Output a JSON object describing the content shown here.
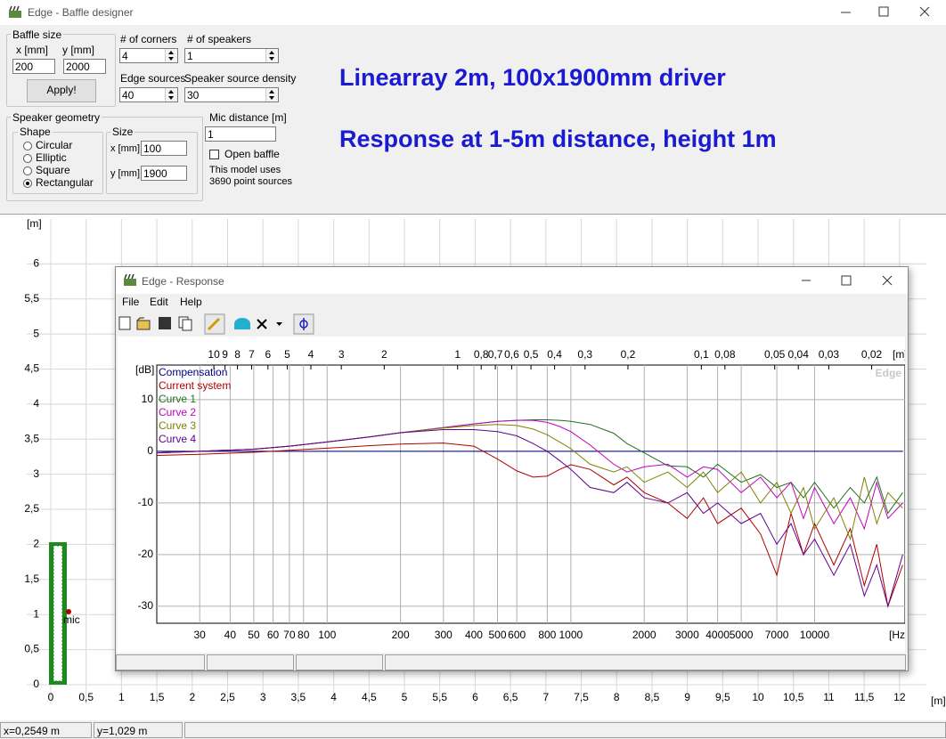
{
  "window": {
    "title": "Edge - Baffle designer"
  },
  "baffle_size": {
    "legend": "Baffle size",
    "x_label": "x [mm]",
    "y_label": "y [mm]",
    "x": "200",
    "y": "2000",
    "apply": "Apply!"
  },
  "corners": {
    "label": "# of corners",
    "value": "4"
  },
  "speakers": {
    "label": "# of speakers",
    "value": "1"
  },
  "edge_sources": {
    "label": "Edge sources",
    "value": "40"
  },
  "source_density": {
    "label": "Speaker source density",
    "value": "30"
  },
  "geometry": {
    "legend": "Speaker geometry",
    "shape_legend": "Shape",
    "shapes": [
      "Circular",
      "Elliptic",
      "Square",
      "Rectangular"
    ],
    "selected": 3,
    "size_legend": "Size",
    "x_label": "x [mm]",
    "x": "100",
    "y_label": "y [mm]",
    "y": "1900"
  },
  "mic": {
    "label": "Mic distance [m]",
    "value": "1",
    "open_baffle": "Open baffle",
    "info": [
      "This model uses",
      "3690 point sources"
    ]
  },
  "notes": [
    "Linearray 2m,  100x1900mm  driver",
    "Response at 1-5m distance, height 1m"
  ],
  "layout_plot": {
    "x_unit": "[m]",
    "y_unit": "[m]",
    "mic_label": "mic",
    "xlim": [
      -0.34,
      12.38
    ],
    "ylim": [
      -0.28,
      6.64
    ],
    "xticks": [
      0,
      {
        "value": 0.5,
        "label": "0,5"
      },
      1,
      {
        "value": 1.5,
        "label": "1,5"
      },
      2,
      {
        "value": 2.5,
        "label": "2,5"
      },
      3,
      {
        "value": 3.5,
        "label": "3,5"
      },
      4,
      {
        "value": 4.5,
        "label": "4,5"
      },
      5,
      {
        "value": 5.5,
        "label": "5,5"
      },
      6,
      {
        "value": 6.5,
        "label": "6,5"
      },
      7,
      {
        "value": 7.5,
        "label": "7,5"
      },
      8,
      {
        "value": 8.5,
        "label": "8,5"
      },
      9,
      {
        "value": 9.5,
        "label": "9,5"
      },
      10,
      {
        "value": 10.5,
        "label": "10,5"
      },
      11,
      {
        "value": 11.5,
        "label": "11,5"
      },
      12
    ],
    "yticks": [
      0,
      {
        "value": 0.5,
        "label": "0,5"
      },
      1,
      {
        "value": 1.5,
        "label": "1,5"
      },
      2,
      {
        "value": 2.5,
        "label": "2,5"
      },
      3,
      {
        "value": 3.5,
        "label": "3,5"
      },
      4,
      {
        "value": 4.5,
        "label": "4,5"
      },
      5,
      {
        "value": 5.5,
        "label": "5,5"
      },
      6
    ]
  },
  "status": [
    "x=0,2549 m",
    "y=1,029 m"
  ],
  "response": {
    "title": "Edge - Response",
    "menu": [
      "File",
      "Edit",
      "Help"
    ],
    "chart": {
      "type": "line",
      "watermark": "Edge",
      "ylabel": "[dB]",
      "x_unit": "[Hz]",
      "top_unit": "[m]",
      "xlog": true,
      "grid": true,
      "xlim": [
        20,
        23500
      ],
      "ylim": [
        -33.3,
        16.7
      ],
      "yticks": [
        -30,
        -20,
        -10,
        0,
        10
      ],
      "xticks": [
        30,
        40,
        50,
        60,
        70,
        80,
        100,
        200,
        300,
        400,
        500,
        600,
        800,
        1000,
        2000,
        3000,
        4000,
        5000,
        7000,
        10000
      ],
      "top_ticks": [
        10,
        9,
        8,
        7,
        6,
        5,
        4,
        3,
        2,
        1,
        {
          "value": 0.8,
          "label": "0,8"
        },
        {
          "value": 0.7,
          "label": "0,7"
        },
        {
          "value": 0.6,
          "label": "0,6"
        },
        {
          "value": 0.5,
          "label": "0,5"
        },
        {
          "value": 0.4,
          "label": "0,4"
        },
        {
          "value": 0.3,
          "label": "0,3"
        },
        {
          "value": 0.2,
          "label": "0,2"
        },
        {
          "value": 0.1,
          "label": "0,1"
        },
        {
          "value": 0.08,
          "label": "0,08"
        },
        {
          "value": 0.05,
          "label": "0,05"
        },
        {
          "value": 0.04,
          "label": "0,04"
        },
        {
          "value": 0.03,
          "label": "0,03"
        },
        {
          "value": 0.02,
          "label": "0,02"
        }
      ],
      "x": [
        20,
        30,
        50,
        70,
        100,
        150,
        200,
        300,
        400,
        500,
        600,
        700,
        800,
        900,
        1000,
        1200,
        1500,
        1700,
        2000,
        2500,
        3000,
        3500,
        4000,
        5000,
        6000,
        7000,
        8000,
        9000,
        10000,
        12000,
        14000,
        16000,
        18000,
        20000,
        23000
      ],
      "series": [
        {
          "name": "Compensation",
          "color": "#000080",
          "values": [
            0,
            0,
            0,
            0,
            0,
            0,
            0,
            0,
            0,
            0,
            0,
            0,
            0,
            0,
            0,
            0,
            0,
            0,
            0,
            0,
            0,
            0,
            0,
            0,
            0,
            0,
            0,
            0,
            0,
            0,
            0,
            0,
            0,
            0,
            0
          ]
        },
        {
          "name": "Current system",
          "color": "#b00000",
          "values": [
            -0.8,
            -0.6,
            -0.2,
            0.2,
            0.6,
            1.1,
            1.4,
            1.6,
            1.0,
            -1.5,
            -3.8,
            -5.0,
            -4.8,
            -3.5,
            -2.6,
            -3.5,
            -6.5,
            -5.0,
            -8.0,
            -10,
            -13,
            -9,
            -14,
            -11,
            -16,
            -24,
            -12,
            -20,
            -14,
            -22,
            -15,
            -26,
            -18,
            -30,
            -22
          ]
        },
        {
          "name": "Curve 1",
          "color": "#207020",
          "values": [
            -0.3,
            0,
            0.4,
            1,
            1.8,
            2.8,
            3.6,
            4.6,
            5.3,
            5.8,
            6,
            6.1,
            6.1,
            6,
            5.8,
            5.2,
            3.5,
            1.5,
            -0.3,
            -2.8,
            -3,
            -5,
            -2.5,
            -6,
            -4.5,
            -7,
            -6,
            -9,
            -6,
            -11,
            -7,
            -10,
            -5,
            -12,
            -8
          ]
        },
        {
          "name": "Curve 2",
          "color": "#c000c0",
          "values": [
            -0.3,
            0,
            0.4,
            1,
            1.8,
            2.8,
            3.6,
            4.6,
            5.3,
            5.8,
            6,
            6,
            5.6,
            4.8,
            3.8,
            1.2,
            -2.5,
            -4,
            -3,
            -2.5,
            -5,
            -3,
            -3.5,
            -8,
            -5,
            -9,
            -6,
            -13,
            -7,
            -14,
            -9,
            -15,
            -6,
            -13,
            -10
          ]
        },
        {
          "name": "Curve 3",
          "color": "#808000",
          "values": [
            -0.3,
            0,
            0.4,
            1,
            1.8,
            2.8,
            3.6,
            4.5,
            5,
            5.2,
            5,
            4.3,
            3.2,
            1.8,
            0.5,
            -2.5,
            -4,
            -3,
            -6,
            -4,
            -7,
            -4,
            -8,
            -4,
            -10,
            -6,
            -12,
            -7,
            -15,
            -9,
            -17,
            -5,
            -14,
            -8,
            -11
          ]
        },
        {
          "name": "Curve 4",
          "color": "#600090",
          "values": [
            -0.3,
            0,
            0.4,
            1,
            1.8,
            2.8,
            3.6,
            4.2,
            4.2,
            3.8,
            3,
            1.5,
            0,
            -1.8,
            -3.5,
            -7,
            -8,
            -6,
            -9,
            -10,
            -8,
            -12,
            -10,
            -14,
            -12,
            -18,
            -14,
            -20,
            -17,
            -24,
            -18,
            -28,
            -22,
            -30,
            -20
          ]
        }
      ]
    }
  }
}
